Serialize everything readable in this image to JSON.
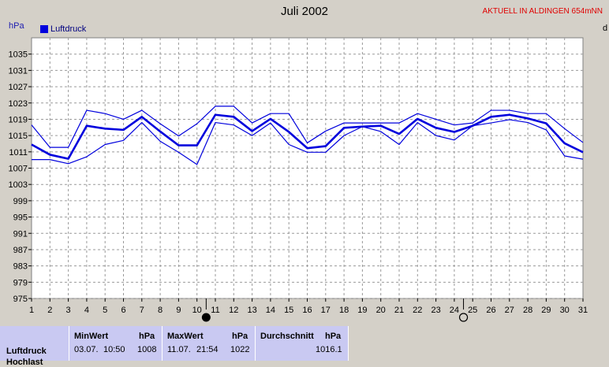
{
  "header": {
    "title": "Juli 2002",
    "station": "AKTUELL IN ALDINGEN 654mNN",
    "unit": "hPa",
    "legend": "Luftdruck",
    "right_cut": "d"
  },
  "colors": {
    "main": "#0000dd",
    "accent": "#e00000",
    "panel": "#c9c9f2"
  },
  "moon_icons": [
    "new-moon-icon",
    "full-moon-icon"
  ],
  "chart_data": {
    "type": "line",
    "title": "Juli 2002",
    "ylabel": "hPa",
    "ylim": [
      975,
      1039
    ],
    "y_ticks": [
      1035,
      1031,
      1027,
      1023,
      1019,
      1015,
      1011,
      1007,
      1003,
      999,
      995,
      991,
      987,
      983,
      979,
      975
    ],
    "x": [
      1,
      2,
      3,
      4,
      5,
      6,
      7,
      8,
      9,
      10,
      11,
      12,
      13,
      14,
      15,
      16,
      17,
      18,
      19,
      20,
      21,
      22,
      23,
      24,
      25,
      26,
      27,
      28,
      29,
      30,
      31
    ],
    "grid": true,
    "legend_position": "top-left",
    "series": [
      {
        "name": "Luftdruck",
        "values": [
          1012.8,
          1010.3,
          1009.3,
          1017.4,
          1016.7,
          1016.4,
          1019.6,
          1016.0,
          1012.6,
          1012.6,
          1020.1,
          1019.6,
          1016.1,
          1019.1,
          1015.9,
          1011.9,
          1012.4,
          1016.9,
          1017.2,
          1017.4,
          1015.4,
          1019.1,
          1016.9,
          1015.9,
          1017.4,
          1019.6,
          1020.1,
          1019.2,
          1018.0,
          1013.1,
          1010.9
        ]
      },
      {
        "name": "max",
        "values": [
          1017.6,
          1012.1,
          1012.1,
          1021.2,
          1020.4,
          1019.0,
          1021.2,
          1017.9,
          1014.9,
          1017.9,
          1022.2,
          1022.2,
          1018.1,
          1020.4,
          1020.4,
          1013.2,
          1016.1,
          1018.1,
          1018.1,
          1018.1,
          1018.1,
          1020.4,
          1019.0,
          1017.6,
          1018.1,
          1021.2,
          1021.2,
          1020.4,
          1020.4,
          1016.7,
          1013.3
        ]
      },
      {
        "name": "min",
        "values": [
          1009.1,
          1009.1,
          1008.1,
          1009.8,
          1012.8,
          1013.8,
          1018.2,
          1013.6,
          1010.9,
          1007.9,
          1018.2,
          1017.6,
          1015.0,
          1018.1,
          1012.8,
          1010.9,
          1010.9,
          1015.0,
          1017.2,
          1016.0,
          1012.8,
          1018.2,
          1015.0,
          1013.9,
          1017.4,
          1018.1,
          1018.9,
          1018.2,
          1016.4,
          1010.0,
          1009.2
        ]
      }
    ],
    "moon_phase_days": [
      10.5,
      24.5
    ]
  },
  "stats": {
    "row_label": "Luftdruck",
    "row_label_next": "Hochlast",
    "min": {
      "header": "MinWert",
      "unit": "hPa",
      "date": "03.07.",
      "time": "10:50",
      "value": "1008"
    },
    "max": {
      "header": "MaxWert",
      "unit": "hPa",
      "date": "11.07.",
      "time": "21:54",
      "value": "1022"
    },
    "avg": {
      "header": "Durchschnitt",
      "unit": "hPa",
      "value": "1016.1"
    }
  }
}
